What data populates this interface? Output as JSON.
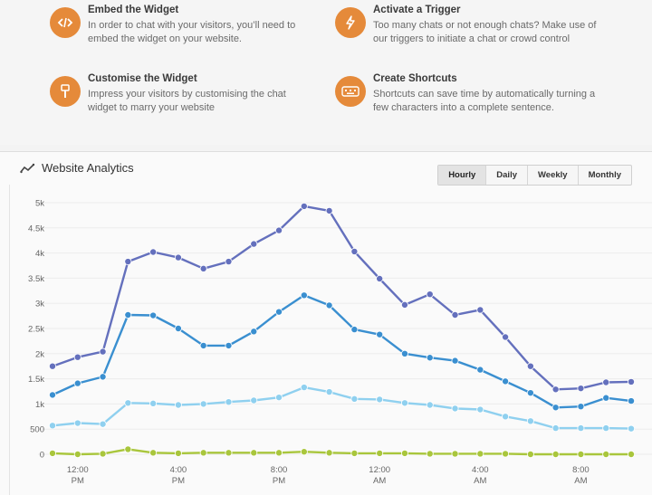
{
  "features": [
    {
      "title": "Embed the Widget",
      "desc": "In order to chat with your visitors, you’ll need to embed the widget on your website.",
      "icon": "code-icon"
    },
    {
      "title": "Activate a Trigger",
      "desc": "Too many chats or not enough chats? Make use of our triggers to initiate a chat or crowd control",
      "icon": "lightning-icon"
    },
    {
      "title": "Customise the Widget",
      "desc": "Impress your visitors by customising the chat widget to marry your website",
      "icon": "brush-icon"
    },
    {
      "title": "Create Shortcuts",
      "desc": "Shortcuts can save time by automatically turning a few characters into a complete sentence.",
      "icon": "keyboard-icon"
    }
  ],
  "analytics": {
    "title": "Website Analytics",
    "icon": "line-chart-icon",
    "ranges": [
      "Hourly",
      "Daily",
      "Weekly",
      "Monthly"
    ],
    "active_range": "Hourly"
  },
  "colors": {
    "accent": "#e58a3a",
    "series": [
      "#6470bd",
      "#3a8fd0",
      "#8fd0ef",
      "#a9c63c"
    ]
  },
  "chart_data": {
    "type": "line",
    "ylim": [
      0,
      5000
    ],
    "yticks": [
      "0",
      "500",
      "1k",
      "1.5k",
      "2k",
      "2.5k",
      "3k",
      "3.5k",
      "4k",
      "4.5k",
      "5k"
    ],
    "xticks": [
      {
        "index": 1,
        "label": [
          "12:00",
          "PM"
        ]
      },
      {
        "index": 5,
        "label": [
          "4:00",
          "PM"
        ]
      },
      {
        "index": 9,
        "label": [
          "8:00",
          "PM"
        ]
      },
      {
        "index": 13,
        "label": [
          "12:00",
          "AM"
        ]
      },
      {
        "index": 17,
        "label": [
          "4:00",
          "AM"
        ]
      },
      {
        "index": 21,
        "label": [
          "8:00",
          "AM"
        ]
      }
    ],
    "xcount": 23,
    "series": [
      {
        "values": [
          1750,
          1930,
          2040,
          3830,
          4020,
          3910,
          3690,
          3830,
          4180,
          4450,
          4930,
          4840,
          4030,
          3490,
          2970,
          3180,
          2770,
          2870,
          2330,
          1750,
          1290,
          1310,
          1430,
          1440
        ]
      },
      {
        "values": [
          1180,
          1410,
          1540,
          2770,
          2760,
          2500,
          2160,
          2160,
          2440,
          2830,
          3160,
          2960,
          2480,
          2380,
          2000,
          1920,
          1860,
          1680,
          1450,
          1220,
          930,
          950,
          1120,
          1060
        ]
      },
      {
        "values": [
          570,
          620,
          600,
          1020,
          1010,
          980,
          1000,
          1040,
          1070,
          1130,
          1330,
          1240,
          1100,
          1090,
          1020,
          980,
          910,
          890,
          750,
          660,
          520,
          520,
          520,
          510
        ]
      },
      {
        "values": [
          20,
          0,
          10,
          100,
          30,
          20,
          30,
          30,
          30,
          30,
          50,
          30,
          20,
          20,
          20,
          10,
          10,
          10,
          10,
          0,
          0,
          0,
          0,
          0
        ]
      }
    ]
  }
}
